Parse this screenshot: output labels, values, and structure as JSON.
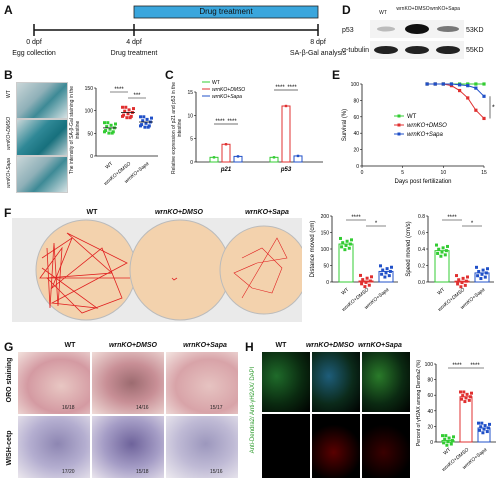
{
  "panels": {
    "A": {
      "letter": "A",
      "timepoints": [
        {
          "day": "0 dpf",
          "event": "Egg collection"
        },
        {
          "day": "4 dpf",
          "event": "Drug treatment"
        },
        {
          "day": "8 dpf",
          "event": "SA-β-Gal analysis"
        }
      ],
      "bar_label": "Drug treatment"
    },
    "B": {
      "letter": "B",
      "row_labels": [
        "WT",
        "wrnKO+DMSO",
        "wrnKO+Sapa"
      ],
      "ylabel": "The intensity of SA-β-Gal staining in the intestine",
      "chart": {
        "type": "scatter",
        "categories": [
          "WT",
          "wrnKO+DMSO",
          "wrnKO+Sapa"
        ],
        "means": [
          62,
          96,
          75
        ],
        "ylim": [
          0,
          150
        ],
        "yticks": [
          "0",
          "50",
          "100",
          "150"
        ],
        "sig": [
          "****",
          "***"
        ],
        "colors": [
          "#33cc33",
          "#e03030",
          "#2050c8"
        ]
      }
    },
    "C": {
      "letter": "C",
      "ylabel": "Relative expression of p21 and p53 in the intestine",
      "legend": [
        "WT",
        "wrnKO+DMSO",
        "wrnKO+Sapa"
      ],
      "chart": {
        "type": "bar",
        "categories": [
          "p21",
          "p53"
        ],
        "series": [
          {
            "name": "WT",
            "values": [
              1,
              1
            ]
          },
          {
            "name": "wrnKO+DMSO",
            "values": [
              3.8,
              12
            ]
          },
          {
            "name": "wrnKO+Sapa",
            "values": [
              1.2,
              1.3
            ]
          }
        ],
        "ylim": [
          0,
          15
        ],
        "yticks": [
          "0",
          "5",
          "10",
          "15"
        ],
        "sig": [
          "****",
          "****",
          "****",
          "****"
        ]
      }
    },
    "D": {
      "letter": "D",
      "columns": [
        "WT",
        "wrnKO+DMSO",
        "wrnKO+Sapa"
      ],
      "rows": [
        {
          "protein": "p53",
          "size": "53KD"
        },
        {
          "protein": "α-tubulin",
          "size": "55KD"
        }
      ]
    },
    "E": {
      "letter": "E",
      "chart": {
        "type": "line",
        "xlabel": "Days post fertilization",
        "ylabel": "Survival (%)",
        "xlim": [
          0,
          15
        ],
        "ylim": [
          0,
          100
        ],
        "xticks": [
          "0",
          "5",
          "10",
          "15"
        ],
        "yticks": [
          "0",
          "20",
          "40",
          "60",
          "80",
          "100"
        ],
        "series": [
          {
            "name": "WT",
            "x": [
              8,
              9,
              10,
              11,
              12,
              13,
              14,
              15
            ],
            "y": [
              100,
              100,
              100,
              100,
              100,
              100,
              100,
              100
            ]
          },
          {
            "name": "wrnKO+DMSO",
            "x": [
              8,
              9,
              10,
              11,
              12,
              13,
              14,
              15
            ],
            "y": [
              100,
              100,
              100,
              98,
              92,
              83,
              68,
              58
            ]
          },
          {
            "name": "wrnKO+Sapa",
            "x": [
              8,
              9,
              10,
              11,
              12,
              13,
              14,
              15
            ],
            "y": [
              100,
              100,
              100,
              100,
              99,
              98,
              95,
              85
            ]
          }
        ],
        "sig": "*"
      }
    },
    "F": {
      "letter": "F",
      "plate_labels": [
        "WT",
        "wrnKO+DMSO",
        "wrnKO+Sapa"
      ],
      "charts": [
        {
          "type": "bar",
          "ylabel": "Distance moved (cm)",
          "categories": [
            "WT",
            "wrnKO+DMSO",
            "wrnKO+Sapa"
          ],
          "values": [
            115,
            3,
            32
          ],
          "ylim": [
            0,
            200
          ],
          "yticks": [
            "0",
            "50",
            "100",
            "150",
            "200"
          ],
          "sig": [
            "****",
            "*"
          ]
        },
        {
          "type": "bar",
          "ylabel": "Speed moved (cm/s)",
          "categories": [
            "WT",
            "wrnKO+DMSO",
            "wrnKO+Sapa"
          ],
          "values": [
            0.38,
            0.01,
            0.11
          ],
          "ylim": [
            0,
            0.8
          ],
          "yticks": [
            "0.0",
            "0.2",
            "0.4",
            "0.6",
            "0.8"
          ],
          "sig": [
            "****",
            "*"
          ]
        }
      ]
    },
    "G": {
      "letter": "G",
      "col_labels": [
        "WT",
        "wrnKO+DMSO",
        "wrnKO+Sapa"
      ],
      "row_labels": [
        "ORO staining",
        "WISH-cetp"
      ],
      "counts": [
        [
          "16/18",
          "14/16",
          "15/17"
        ],
        [
          "17/20",
          "15/18",
          "15/16"
        ]
      ]
    },
    "H": {
      "letter": "H",
      "col_labels": [
        "WT",
        "wrnKO+DMSO",
        "wrnKO+Sapa"
      ],
      "stain_label": "Anti-Dendra2/ Anti-γH2AX/ DAPI",
      "chart": {
        "type": "scatter",
        "ylabel": "Percent of γH2AX among Dendra2 (%)",
        "categories": [
          "WT",
          "wrnKO+DMSO",
          "wrnKO+Sapa"
        ],
        "means": [
          2,
          58,
          18
        ],
        "ylim": [
          0,
          100
        ],
        "yticks": [
          "0",
          "20",
          "40",
          "60",
          "80",
          "100"
        ],
        "sig": [
          "****",
          "****"
        ]
      }
    }
  }
}
